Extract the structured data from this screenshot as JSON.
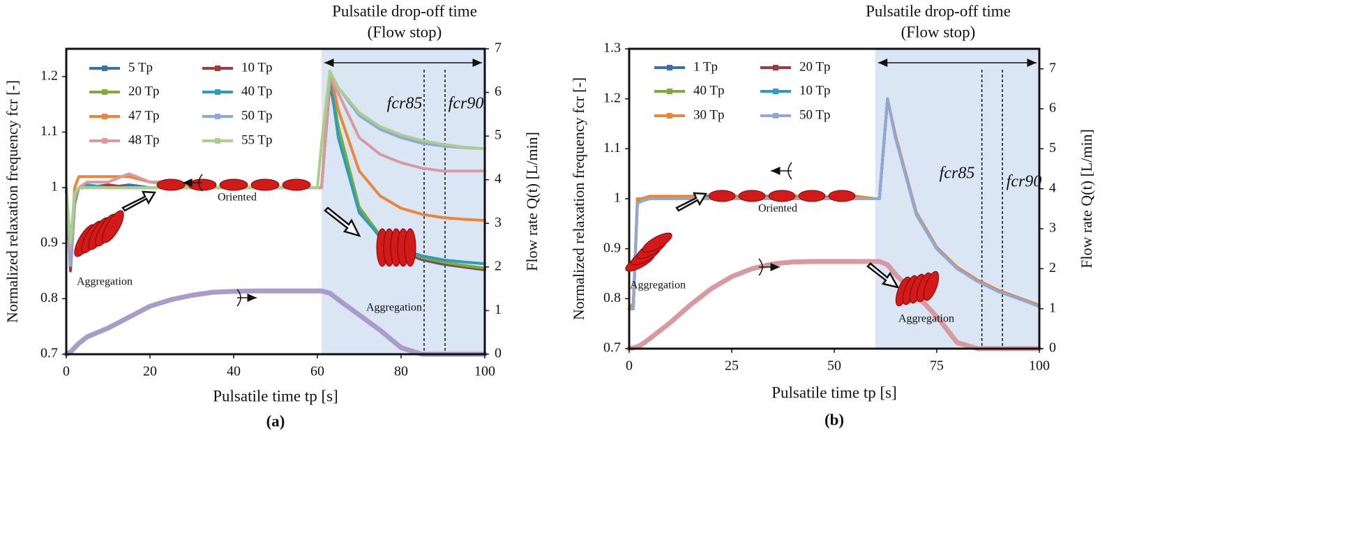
{
  "chart_data": [
    {
      "type": "line",
      "panel_label": "(a)",
      "drop_off_label": "Pulsatile drop-off time",
      "flow_stop_label": "(Flow stop)",
      "x_label": "Pulsatile time tp [s]",
      "y_label": "Normalized relaxation frequency fcr [-]",
      "y2_label": "Flow rate Q(t) [L/min]",
      "annotations": [
        "Oriented",
        "Aggregation",
        "Aggregation",
        "fcr85",
        "fcr90"
      ],
      "shade": [
        61,
        100
      ],
      "vlines": [
        85.5,
        90.5
      ],
      "xlim": [
        0,
        100
      ],
      "xticks": [
        0,
        20,
        40,
        60,
        80,
        100
      ],
      "ylim": [
        0.7,
        1.25
      ],
      "yticks": [
        0.7,
        0.8,
        0.9,
        1,
        1.1,
        1.2
      ],
      "y2lim": [
        0,
        7
      ],
      "y2ticks": [
        0,
        1,
        2,
        3,
        4,
        5,
        6,
        7
      ],
      "x": [
        0,
        1,
        2,
        3,
        5,
        10,
        15,
        20,
        25,
        30,
        35,
        40,
        45,
        50,
        55,
        60,
        61,
        63,
        65,
        70,
        75,
        80,
        85,
        90,
        95,
        100
      ],
      "series": [
        {
          "color": "#a89cc8",
          "axis": "y2",
          "values": [
            0,
            0.05,
            0.15,
            0.25,
            0.4,
            0.6,
            0.85,
            1.1,
            1.25,
            1.35,
            1.42,
            1.44,
            1.45,
            1.45,
            1.45,
            1.45,
            1.45,
            1.4,
            1.25,
            0.9,
            0.55,
            0.15,
            0,
            0,
            0,
            0
          ]
        },
        {
          "name": "5 Tp",
          "color": "#3a6fb0",
          "values": [
            1,
            0.86,
            0.98,
            1,
            1.005,
            1,
            1.005,
            1,
            1,
            1,
            1,
            1,
            1,
            1,
            1,
            1,
            1,
            1.2,
            1.1,
            0.96,
            0.91,
            0.885,
            0.87,
            0.862,
            0.857,
            0.852
          ]
        },
        {
          "name": "10 Tp",
          "color": "#a33a3a",
          "values": [
            1,
            0.85,
            0.97,
            1,
            1,
            1.005,
            1,
            1,
            1,
            1,
            1,
            1,
            1,
            1,
            1,
            1,
            1,
            1.19,
            1.1,
            0.96,
            0.912,
            0.887,
            0.872,
            0.864,
            0.858,
            0.853
          ]
        },
        {
          "name": "20 Tp",
          "color": "#7fab3c",
          "values": [
            1,
            0.86,
            0.97,
            1,
            1,
            1,
            1,
            1,
            1,
            1,
            1,
            1,
            1,
            1,
            1,
            1,
            1,
            1.2,
            1.11,
            0.965,
            0.914,
            0.89,
            0.874,
            0.866,
            0.86,
            0.855
          ]
        },
        {
          "name": "40 Tp",
          "color": "#2f9db5",
          "values": [
            1,
            0.86,
            0.98,
            1,
            1.005,
            1,
            1,
            1,
            1,
            1,
            1,
            1,
            1,
            1,
            1,
            1,
            1,
            1.2,
            1.09,
            0.955,
            0.912,
            0.89,
            0.877,
            0.87,
            0.866,
            0.863
          ]
        },
        {
          "name": "47 Tp",
          "color": "#e8863a",
          "values": [
            1,
            0.88,
            1.0,
            1.02,
            1.02,
            1.02,
            1.02,
            1.01,
            1.01,
            1.005,
            1.0,
            1.0,
            1.0,
            1.0,
            1.0,
            1.0,
            1.0,
            1.21,
            1.14,
            1.03,
            0.985,
            0.963,
            0.952,
            0.946,
            0.943,
            0.941
          ]
        },
        {
          "name": "50 Tp",
          "color": "#8fa8d6",
          "values": [
            1,
            0.86,
            0.98,
            1,
            1,
            1,
            1,
            1,
            1,
            1,
            1,
            1,
            1,
            1,
            1,
            1,
            1,
            1.2,
            1.18,
            1.13,
            1.105,
            1.09,
            1.08,
            1.075,
            1.072,
            1.07
          ]
        },
        {
          "name": "48 Tp",
          "color": "#d89aa0",
          "values": [
            1,
            0.89,
            0.99,
            1,
            1.01,
            1.01,
            1.025,
            1.01,
            1.005,
            1,
            1,
            1,
            1,
            1,
            1,
            1,
            1,
            1.2,
            1.17,
            1.09,
            1.06,
            1.045,
            1.035,
            1.03,
            1.03,
            1.03
          ]
        },
        {
          "name": "55 Tp",
          "color": "#a9cf8c",
          "values": [
            1,
            0.9,
            0.99,
            1,
            1,
            1,
            1,
            1,
            1,
            1,
            1,
            1,
            1,
            1,
            1,
            1,
            1.08,
            1.21,
            1.18,
            1.135,
            1.11,
            1.095,
            1.085,
            1.078,
            1.073,
            1.07
          ]
        }
      ]
    },
    {
      "type": "line",
      "panel_label": "(b)",
      "drop_off_label": "Pulsatile drop-off time",
      "flow_stop_label": "(Flow stop)",
      "x_label": "Pulsatile time tp [s]",
      "y_label": "Normalized relaxation frequency fcr [-]",
      "y2_label": "Flow rate Q(t) [L/min]",
      "annotations": [
        "Oriented",
        "Aggregation",
        "Aggregation",
        "fcr85",
        "fcr90"
      ],
      "shade": [
        60,
        100
      ],
      "vlines": [
        86,
        91
      ],
      "xlim": [
        0,
        100
      ],
      "xticks": [
        0,
        25,
        50,
        75,
        100
      ],
      "ylim": [
        0.7,
        1.3
      ],
      "yticks": [
        0.7,
        0.8,
        0.9,
        1,
        1.1,
        1.2,
        1.3
      ],
      "y2lim": [
        0,
        7.5
      ],
      "y2ticks": [
        0,
        1,
        2,
        3,
        4,
        5,
        6,
        7
      ],
      "x": [
        0,
        1,
        2,
        3,
        5,
        10,
        15,
        20,
        25,
        30,
        35,
        40,
        45,
        50,
        55,
        60,
        61,
        63,
        65,
        70,
        75,
        80,
        85,
        90,
        95,
        100
      ],
      "series": [
        {
          "color": "#d89aa0",
          "axis": "y2",
          "values": [
            0,
            0.02,
            0.05,
            0.1,
            0.25,
            0.65,
            1.1,
            1.5,
            1.8,
            2.0,
            2.12,
            2.17,
            2.18,
            2.18,
            2.18,
            2.18,
            2.18,
            2.1,
            1.85,
            1.35,
            0.8,
            0.15,
            0,
            0,
            0,
            0
          ]
        },
        {
          "name": "1 Tp",
          "color": "#3a6fb0",
          "values": [
            0.78,
            0.78,
            1.0,
            0.995,
            1.0,
            1.0,
            1.005,
            1.005,
            1.005,
            1.005,
            1.005,
            1.005,
            1.005,
            1.0,
            1.005,
            1.0,
            1.0,
            1.2,
            1.12,
            0.97,
            0.9,
            0.86,
            0.835,
            0.815,
            0.8,
            0.785
          ]
        },
        {
          "name": "20 Tp",
          "color": "#a33a3a",
          "values": [
            0.78,
            0.79,
            0.99,
            1.0,
            1.0,
            1.005,
            1.0,
            1.005,
            1.0,
            1.005,
            1.0,
            1.005,
            1.0,
            1.005,
            1.0,
            1.0,
            1.0,
            1.2,
            1.12,
            0.972,
            0.902,
            0.862,
            0.836,
            0.816,
            0.8,
            0.786
          ]
        },
        {
          "name": "40 Tp",
          "color": "#7fab3c",
          "values": [
            0.78,
            0.78,
            1.0,
            1.0,
            1.005,
            1.0,
            1.005,
            1.0,
            1.005,
            1.0,
            1.005,
            1.0,
            1.005,
            1.0,
            1.005,
            1.0,
            1.0,
            1.2,
            1.12,
            0.968,
            0.9,
            0.861,
            0.835,
            0.815,
            0.8,
            0.785
          ]
        },
        {
          "name": "10 Tp",
          "color": "#2f9db5",
          "values": [
            0.78,
            0.78,
            0.99,
            1.0,
            1.0,
            1.0,
            1.0,
            1.005,
            1.005,
            1.0,
            1.0,
            1.005,
            1.005,
            1.0,
            1.0,
            1.0,
            1.0,
            1.2,
            1.12,
            0.97,
            0.9,
            0.86,
            0.835,
            0.815,
            0.8,
            0.785
          ]
        },
        {
          "name": "30 Tp",
          "color": "#e8863a",
          "values": [
            0.78,
            0.79,
            1.0,
            1.0,
            1.005,
            1.005,
            1.005,
            1.0,
            1.005,
            1.005,
            1.0,
            1.005,
            1.005,
            1.0,
            1.005,
            1.0,
            1.0,
            1.2,
            1.125,
            0.973,
            0.903,
            0.863,
            0.837,
            0.817,
            0.802,
            0.787
          ]
        },
        {
          "name": "50 Tp",
          "color": "#8fa8d6",
          "values": [
            0.78,
            0.78,
            0.99,
            0.995,
            1.0,
            1.0,
            1.0,
            1.0,
            1.0,
            1.0,
            1.0,
            1.0,
            1.0,
            1.0,
            1.0,
            1.0,
            1.0,
            1.2,
            1.12,
            0.97,
            0.9,
            0.86,
            0.834,
            0.814,
            0.8,
            0.784
          ]
        }
      ]
    }
  ]
}
